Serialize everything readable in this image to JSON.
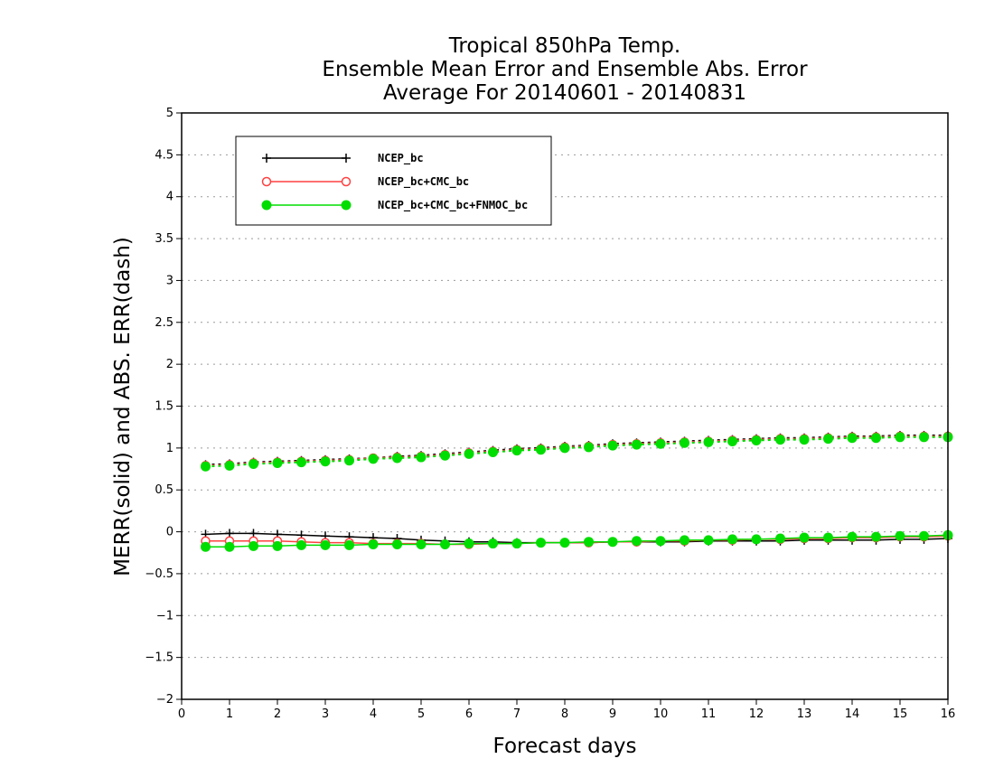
{
  "chart_data": {
    "type": "line",
    "title_lines": [
      "Tropical 850hPa Temp.",
      "Ensemble Mean Error and Ensemble Abs. Error",
      "Average For 20140601 - 20140831"
    ],
    "xlabel": "Forecast days",
    "ylabel": "MERR(solid) and ABS. ERR(dash)",
    "xlim": [
      0,
      16
    ],
    "ylim": [
      -2,
      5
    ],
    "x_ticks": [
      "0",
      "1",
      "2",
      "3",
      "4",
      "5",
      "6",
      "7",
      "8",
      "9",
      "10",
      "11",
      "12",
      "13",
      "14",
      "15",
      "16"
    ],
    "y_ticks": [
      "5",
      "4.5",
      "4",
      "3.5",
      "3",
      "2.5",
      "2",
      "1.5",
      "1",
      "0.5",
      "0",
      "−0.5",
      "−1",
      "−1.5",
      "−2"
    ],
    "grid": true,
    "legend_position": "top-left",
    "x": [
      0.5,
      1,
      1.5,
      2,
      2.5,
      3,
      3.5,
      4,
      4.5,
      5,
      5.5,
      6,
      6.5,
      7,
      7.5,
      8,
      8.5,
      9,
      9.5,
      10,
      10.5,
      11,
      11.5,
      12,
      12.5,
      13,
      13.5,
      14,
      14.5,
      15,
      15.5,
      16
    ],
    "series": [
      {
        "name": "NCEP_bc",
        "color": "#000000",
        "marker": "plus",
        "merr": [
          -0.03,
          -0.02,
          -0.02,
          -0.03,
          -0.04,
          -0.05,
          -0.06,
          -0.07,
          -0.08,
          -0.1,
          -0.11,
          -0.12,
          -0.12,
          -0.13,
          -0.13,
          -0.13,
          -0.13,
          -0.12,
          -0.12,
          -0.12,
          -0.12,
          -0.11,
          -0.11,
          -0.11,
          -0.11,
          -0.1,
          -0.1,
          -0.1,
          -0.1,
          -0.09,
          -0.09,
          -0.08
        ],
        "abs_err": [
          0.8,
          0.81,
          0.83,
          0.84,
          0.85,
          0.86,
          0.87,
          0.88,
          0.9,
          0.91,
          0.93,
          0.95,
          0.97,
          0.99,
          1.0,
          1.02,
          1.03,
          1.05,
          1.06,
          1.07,
          1.08,
          1.09,
          1.1,
          1.11,
          1.12,
          1.12,
          1.13,
          1.14,
          1.14,
          1.15,
          1.15,
          1.15
        ]
      },
      {
        "name": "NCEP_bc+CMC_bc",
        "color": "#ff4040",
        "marker": "open-circle",
        "merr": [
          -0.11,
          -0.11,
          -0.11,
          -0.11,
          -0.12,
          -0.13,
          -0.13,
          -0.14,
          -0.14,
          -0.14,
          -0.15,
          -0.15,
          -0.14,
          -0.14,
          -0.13,
          -0.13,
          -0.13,
          -0.12,
          -0.12,
          -0.11,
          -0.11,
          -0.1,
          -0.1,
          -0.09,
          -0.09,
          -0.08,
          -0.08,
          -0.07,
          -0.07,
          -0.06,
          -0.06,
          -0.05
        ],
        "abs_err": [
          0.79,
          0.8,
          0.82,
          0.83,
          0.84,
          0.85,
          0.86,
          0.88,
          0.89,
          0.9,
          0.92,
          0.94,
          0.96,
          0.98,
          0.99,
          1.01,
          1.02,
          1.04,
          1.05,
          1.06,
          1.07,
          1.08,
          1.09,
          1.1,
          1.11,
          1.11,
          1.12,
          1.13,
          1.13,
          1.14,
          1.14,
          1.14
        ]
      },
      {
        "name": "NCEP_bc+CMC_bc+FNMOC_bc",
        "color": "#00dd00",
        "marker": "filled-circle",
        "merr": [
          -0.18,
          -0.18,
          -0.17,
          -0.17,
          -0.16,
          -0.16,
          -0.16,
          -0.15,
          -0.15,
          -0.15,
          -0.15,
          -0.14,
          -0.14,
          -0.14,
          -0.13,
          -0.13,
          -0.12,
          -0.12,
          -0.11,
          -0.11,
          -0.1,
          -0.1,
          -0.09,
          -0.09,
          -0.08,
          -0.07,
          -0.07,
          -0.06,
          -0.06,
          -0.05,
          -0.05,
          -0.04
        ],
        "abs_err": [
          0.78,
          0.79,
          0.81,
          0.82,
          0.83,
          0.84,
          0.85,
          0.87,
          0.88,
          0.89,
          0.91,
          0.93,
          0.95,
          0.97,
          0.98,
          1.0,
          1.01,
          1.03,
          1.04,
          1.05,
          1.06,
          1.07,
          1.08,
          1.09,
          1.1,
          1.1,
          1.11,
          1.12,
          1.12,
          1.13,
          1.13,
          1.13
        ]
      }
    ]
  }
}
